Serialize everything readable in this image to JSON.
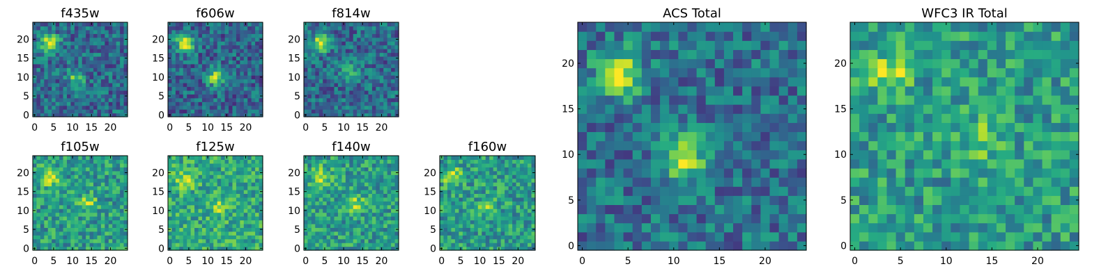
{
  "chart_data": [
    {
      "type": "heatmap",
      "title": "f435w",
      "colormap": "viridis",
      "size": 25,
      "xticks": [
        0,
        5,
        10,
        15,
        20
      ],
      "yticks": [
        0,
        5,
        10,
        15,
        20
      ],
      "features": [
        {
          "x": 4,
          "y": 19,
          "peak": 1.0
        },
        {
          "x": 11,
          "y": 10,
          "peak": 0.75
        }
      ],
      "background": 0.35
    },
    {
      "type": "heatmap",
      "title": "f606w",
      "colormap": "viridis",
      "size": 25,
      "xticks": [
        0,
        5,
        10,
        15,
        20
      ],
      "yticks": [
        0,
        5,
        10,
        15,
        20
      ],
      "features": [
        {
          "x": 4,
          "y": 19,
          "peak": 1.0
        },
        {
          "x": 12,
          "y": 10,
          "peak": 0.8
        }
      ],
      "background": 0.33
    },
    {
      "type": "heatmap",
      "title": "f814w",
      "colormap": "viridis",
      "size": 25,
      "xticks": [
        0,
        5,
        10,
        15,
        20
      ],
      "yticks": [
        0,
        5,
        10,
        15,
        20
      ],
      "features": [
        {
          "x": 4,
          "y": 19,
          "peak": 1.0
        },
        {
          "x": 12,
          "y": 11,
          "peak": 0.7
        }
      ],
      "background": 0.35
    },
    {
      "type": "heatmap",
      "title": "f105w",
      "colormap": "viridis",
      "size": 25,
      "xticks": [
        0,
        5,
        10,
        15,
        20
      ],
      "yticks": [
        0,
        5,
        10,
        15,
        20
      ],
      "features": [
        {
          "x": 4,
          "y": 19,
          "peak": 0.95
        },
        {
          "x": 14,
          "y": 12,
          "peak": 0.85
        }
      ],
      "background": 0.55
    },
    {
      "type": "heatmap",
      "title": "f125w",
      "colormap": "viridis",
      "size": 25,
      "xticks": [
        0,
        5,
        10,
        15,
        20
      ],
      "yticks": [
        0,
        5,
        10,
        15,
        20
      ],
      "features": [
        {
          "x": 4,
          "y": 18,
          "peak": 0.95
        },
        {
          "x": 13,
          "y": 11,
          "peak": 0.9
        }
      ],
      "background": 0.6
    },
    {
      "type": "heatmap",
      "title": "f140w",
      "colormap": "viridis",
      "size": 25,
      "xticks": [
        0,
        5,
        10,
        15,
        20
      ],
      "yticks": [
        0,
        5,
        10,
        15,
        20
      ],
      "features": [
        {
          "x": 4,
          "y": 19,
          "peak": 0.95
        },
        {
          "x": 13,
          "y": 12,
          "peak": 0.85
        }
      ],
      "background": 0.55
    },
    {
      "type": "heatmap",
      "title": "f160w",
      "colormap": "viridis",
      "size": 25,
      "xticks": [
        0,
        5,
        10,
        15,
        20
      ],
      "yticks": [
        0,
        5,
        10,
        15,
        20
      ],
      "features": [
        {
          "x": 3,
          "y": 19,
          "peak": 0.95
        },
        {
          "x": 12,
          "y": 11,
          "peak": 0.8
        }
      ],
      "background": 0.55
    },
    {
      "type": "heatmap",
      "title": "ACS Total",
      "colormap": "viridis",
      "size": 25,
      "xticks": [
        0,
        5,
        10,
        15,
        20
      ],
      "yticks": [
        0,
        5,
        10,
        15,
        20
      ],
      "features": [
        {
          "x": 4,
          "y": 19,
          "peak": 1.0
        },
        {
          "x": 11,
          "y": 10,
          "peak": 0.95
        }
      ],
      "background": 0.38
    },
    {
      "type": "heatmap",
      "title": "WFC3 IR Total",
      "colormap": "viridis",
      "size": 25,
      "xticks": [
        0,
        5,
        10,
        15,
        20
      ],
      "yticks": [
        0,
        5,
        10,
        15,
        20
      ],
      "features": [
        {
          "x": 4,
          "y": 19,
          "peak": 0.92
        },
        {
          "x": 14,
          "y": 12,
          "peak": 0.82
        }
      ],
      "background": 0.55
    }
  ]
}
